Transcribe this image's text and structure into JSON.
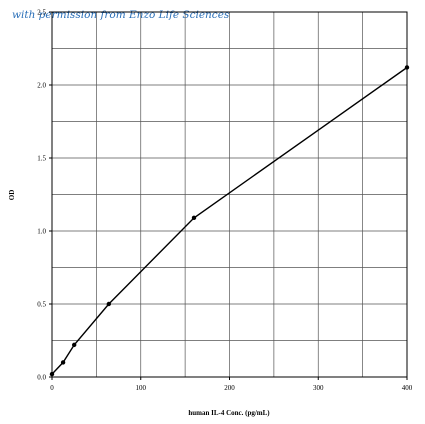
{
  "watermark": "with permission from Enzo Life Sciences",
  "chart_data": {
    "type": "line",
    "title": "",
    "xlabel": "human IL-4 Conc. (pg/mL)",
    "ylabel": "OD",
    "xlim": [
      0,
      400
    ],
    "ylim": [
      0,
      2.5
    ],
    "xticks": [
      0,
      100,
      200,
      300,
      400
    ],
    "xtick_labels": [
      "0",
      "100",
      "200",
      "300",
      "400"
    ],
    "yticks": [
      0.0,
      0.5,
      1.0,
      1.5,
      2.0,
      2.5
    ],
    "ytick_labels": [
      "0.0",
      "0.5",
      "1.0",
      "1.5",
      "2.0",
      "2.5"
    ],
    "grid": true,
    "x_grid_step": 50,
    "y_grid_step": 0.25,
    "series": [
      {
        "x": [
          0,
          12.5,
          25,
          64,
          160,
          400
        ],
        "y": [
          0.02,
          0.1,
          0.22,
          0.5,
          1.09,
          2.12
        ]
      }
    ],
    "colors": {
      "line": "#000000",
      "grid": "#555555",
      "watermark": "#2a6fb8"
    }
  }
}
